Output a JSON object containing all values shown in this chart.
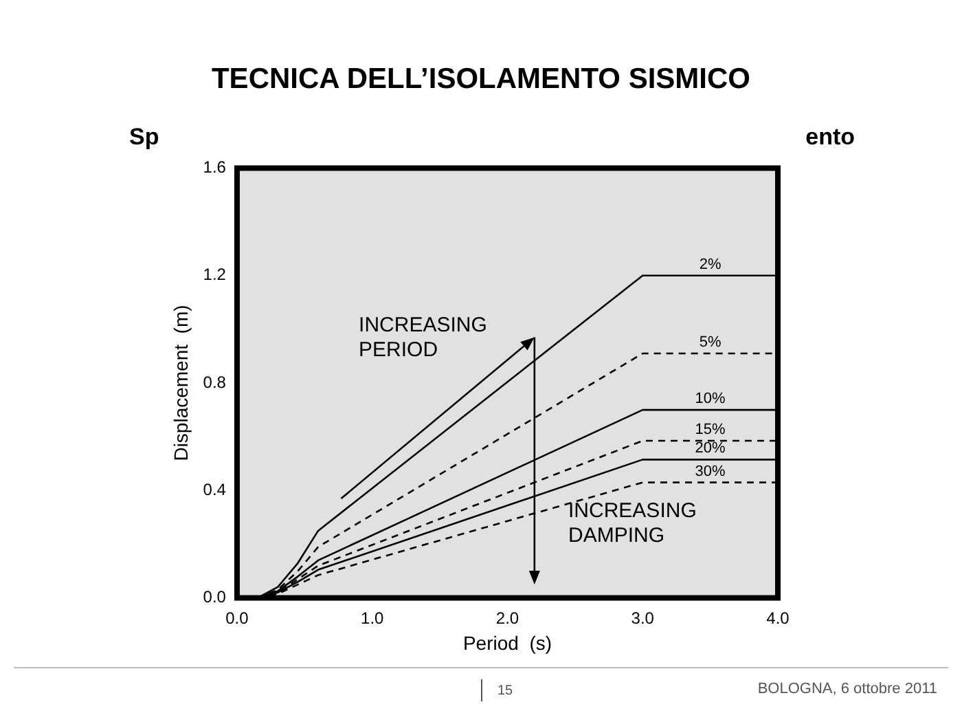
{
  "chart_data": {
    "type": "line",
    "title": "TECNICA DELL’ISOLAMENTO SISMICO",
    "xlabel": "Period  (s)",
    "ylabel": "Displacement  (m)",
    "annotations": [
      "INCREASING PERIOD",
      "INCREASING DAMPING",
      "Sp",
      "ento",
      "15",
      "BOLOGNA, 6 ottobre 2011"
    ],
    "x": [
      0.15,
      0.3,
      0.45,
      0.6,
      3.0,
      4.0
    ],
    "series": [
      {
        "name": "2%",
        "color": "#000000",
        "line_style": "solid",
        "values": [
          0,
          0.04,
          0.13,
          0.25,
          1.2,
          1.2
        ]
      },
      {
        "name": "5%",
        "color": "#000000",
        "line_style": "dashed",
        "values": [
          0,
          0.03,
          0.1,
          0.19,
          0.91,
          0.91
        ]
      },
      {
        "name": "10%",
        "color": "#000000",
        "line_style": "solid",
        "values": [
          0,
          0.025,
          0.08,
          0.14,
          0.7,
          0.7
        ]
      },
      {
        "name": "15%",
        "color": "#000000",
        "line_style": "dashed",
        "values": [
          0,
          0.02,
          0.07,
          0.12,
          0.585,
          0.585
        ]
      },
      {
        "name": "20%",
        "color": "#000000",
        "line_style": "solid",
        "values": [
          0,
          0.02,
          0.06,
          0.105,
          0.515,
          0.515
        ]
      },
      {
        "name": "30%",
        "color": "#000000",
        "line_style": "dashed",
        "values": [
          0,
          0.015,
          0.05,
          0.085,
          0.43,
          0.43
        ]
      }
    ],
    "xlim": [
      0,
      4
    ],
    "xticks": [
      {
        "value": 0,
        "label": "0.0"
      },
      {
        "value": 1,
        "label": "1.0"
      },
      {
        "value": 2,
        "label": "2.0"
      },
      {
        "value": 3,
        "label": "3.0"
      },
      {
        "value": 4,
        "label": "4.0"
      }
    ],
    "ylim": [
      0,
      1.6
    ],
    "yticks": [
      {
        "value": 0,
        "label": "0.0"
      },
      {
        "value": 0.4,
        "label": "0.4"
      },
      {
        "value": 0.8,
        "label": "0.8"
      },
      {
        "value": 1.2,
        "label": "1.2"
      },
      {
        "value": 1.6,
        "label": "1.6"
      }
    ],
    "grid": false,
    "legend": false,
    "marker": "none"
  }
}
